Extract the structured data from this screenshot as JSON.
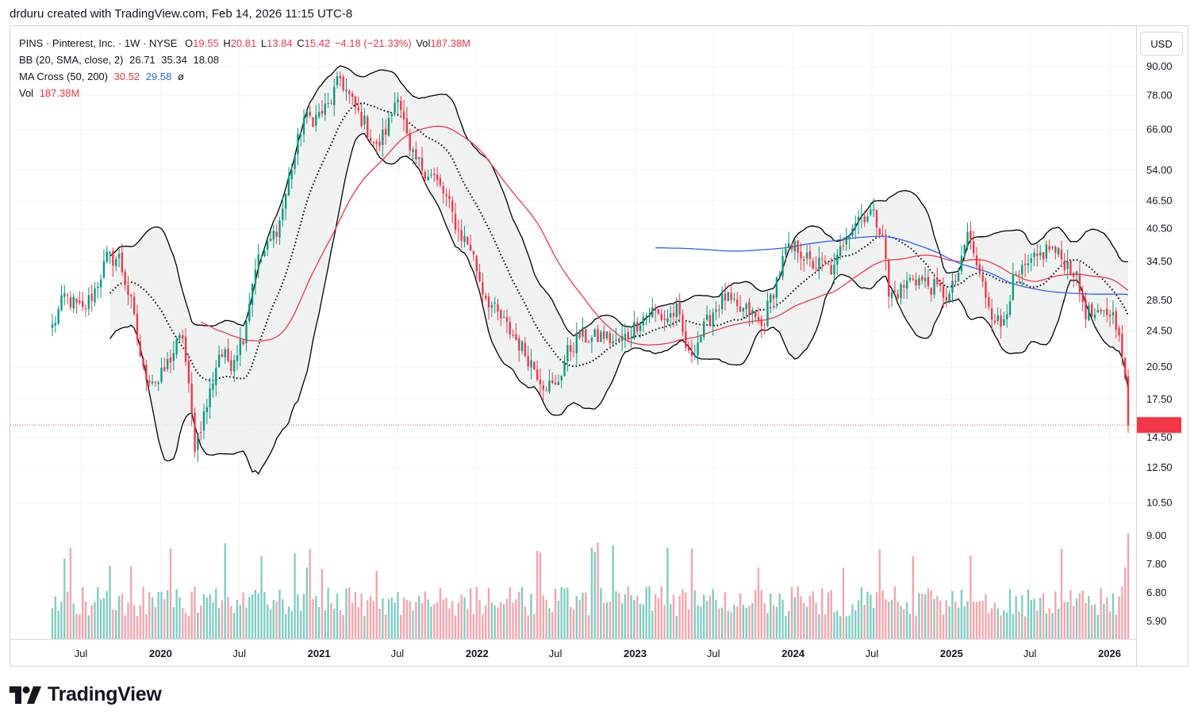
{
  "header": {
    "caption": "drduru created with TradingView.com, Feb 14, 2026 11:15 UTC-8"
  },
  "legend": {
    "symbol_line": "PINS · Pinterest, Inc. · 1W · NYSE",
    "o_label": "O",
    "o_value": "19.55",
    "h_label": "H",
    "h_value": "20.81",
    "l_label": "L",
    "l_value": "13.84",
    "c_label": "C",
    "c_value": "15.42",
    "change": "−4.18 (−21.33%)",
    "vol_label": "Vol",
    "vol_value": "187.38M",
    "bb_label": "BB (20, SMA, close, 2)",
    "bb_mid": "26.71",
    "bb_upper": "35.34",
    "bb_lower": "18.08",
    "ma_label": "MA Cross (50, 200)",
    "ma_fast": "30.52",
    "ma_slow": "29.58",
    "ma_icon": "ø",
    "vol2_label": "Vol",
    "vol2_value": "187.38M"
  },
  "currency": "USD",
  "brand": {
    "name": "TradingView",
    "icon": "tradingview-logo-icon"
  },
  "colors": {
    "up": "#089981",
    "down": "#f23645",
    "vol_up": "#7fccc2",
    "vol_down": "#f6a3aa",
    "ma50": "#f23645",
    "ma200": "#2962ff",
    "bb_fill": "#ebedee",
    "bb_line": "#000000"
  },
  "chart_data": {
    "type": "candlestick",
    "symbol": "PINS",
    "interval": "1W",
    "price_scale": "log",
    "price_ticks": [
      "90.00",
      "78.00",
      "66.00",
      "54.00",
      "46.50",
      "40.50",
      "34.50",
      "28.50",
      "24.50",
      "20.50",
      "17.50",
      "14.50",
      "12.50",
      "10.50"
    ],
    "volume_ticks": [
      "9.00",
      "7.80",
      "6.80",
      "5.90"
    ],
    "time_labels": [
      "Jul",
      "2020",
      "Jul",
      "2021",
      "Jul",
      "2022",
      "Jul",
      "2023",
      "Jul",
      "2024",
      "Jul",
      "2025",
      "Jul",
      "2026"
    ],
    "last_price": 15.42,
    "anchors": [
      [
        "2019-04-26",
        25
      ],
      [
        "2019-05-24",
        29
      ],
      [
        "2019-07-05",
        27
      ],
      [
        "2019-08-02",
        30
      ],
      [
        "2019-08-30",
        35
      ],
      [
        "2019-09-27",
        35
      ],
      [
        "2019-10-25",
        28
      ],
      [
        "2019-11-22",
        20
      ],
      [
        "2019-12-27",
        19
      ],
      [
        "2020-01-24",
        21.5
      ],
      [
        "2020-02-21",
        24
      ],
      [
        "2020-03-20",
        14
      ],
      [
        "2020-04-17",
        17
      ],
      [
        "2020-05-15",
        22
      ],
      [
        "2020-06-12",
        21
      ],
      [
        "2020-07-10",
        24
      ],
      [
        "2020-08-07",
        34
      ],
      [
        "2020-09-04",
        37
      ],
      [
        "2020-10-02",
        42
      ],
      [
        "2020-10-30",
        55
      ],
      [
        "2020-11-27",
        70
      ],
      [
        "2020-12-25",
        70
      ],
      [
        "2021-01-22",
        74
      ],
      [
        "2021-02-19",
        85
      ],
      [
        "2021-03-19",
        75
      ],
      [
        "2021-04-16",
        68
      ],
      [
        "2021-05-14",
        60
      ],
      [
        "2021-06-11",
        68
      ],
      [
        "2021-07-02",
        80
      ],
      [
        "2021-07-30",
        58
      ],
      [
        "2021-08-27",
        55
      ],
      [
        "2021-09-24",
        52
      ],
      [
        "2021-10-22",
        47
      ],
      [
        "2021-11-19",
        40
      ],
      [
        "2021-12-17",
        37
      ],
      [
        "2022-01-14",
        30
      ],
      [
        "2022-02-11",
        27
      ],
      [
        "2022-03-11",
        25
      ],
      [
        "2022-04-08",
        23
      ],
      [
        "2022-05-06",
        21
      ],
      [
        "2022-06-03",
        19
      ],
      [
        "2022-07-01",
        18.5
      ],
      [
        "2022-07-29",
        22
      ],
      [
        "2022-08-26",
        24
      ],
      [
        "2022-09-23",
        23.5
      ],
      [
        "2022-10-21",
        24
      ],
      [
        "2022-11-18",
        23
      ],
      [
        "2022-12-16",
        24
      ],
      [
        "2023-01-13",
        26
      ],
      [
        "2023-02-10",
        27
      ],
      [
        "2023-03-10",
        26
      ],
      [
        "2023-04-07",
        27
      ],
      [
        "2023-05-05",
        21.5
      ],
      [
        "2023-06-02",
        24
      ],
      [
        "2023-06-30",
        27
      ],
      [
        "2023-07-28",
        29
      ],
      [
        "2023-08-25",
        27
      ],
      [
        "2023-09-22",
        27
      ],
      [
        "2023-10-20",
        25
      ],
      [
        "2023-11-17",
        30
      ],
      [
        "2023-12-15",
        36
      ],
      [
        "2024-01-12",
        37
      ],
      [
        "2024-02-09",
        34
      ],
      [
        "2024-03-08",
        34
      ],
      [
        "2024-04-05",
        33
      ],
      [
        "2024-05-03",
        40
      ],
      [
        "2024-05-31",
        43
      ],
      [
        "2024-06-28",
        44
      ],
      [
        "2024-07-26",
        40
      ],
      [
        "2024-08-09",
        29
      ],
      [
        "2024-09-06",
        30
      ],
      [
        "2024-10-04",
        32
      ],
      [
        "2024-11-01",
        31
      ],
      [
        "2024-11-29",
        30
      ],
      [
        "2024-12-27",
        29
      ],
      [
        "2025-01-24",
        34
      ],
      [
        "2025-02-07",
        40
      ],
      [
        "2025-03-07",
        32
      ],
      [
        "2025-04-04",
        27
      ],
      [
        "2025-04-25",
        25
      ],
      [
        "2025-05-23",
        31
      ],
      [
        "2025-06-20",
        33
      ],
      [
        "2025-07-18",
        35
      ],
      [
        "2025-08-15",
        37
      ],
      [
        "2025-09-12",
        35
      ],
      [
        "2025-10-10",
        33
      ],
      [
        "2025-11-07",
        27
      ],
      [
        "2025-12-05",
        26
      ],
      [
        "2026-01-02",
        27
      ],
      [
        "2026-01-23",
        25
      ],
      [
        "2026-01-30",
        21
      ],
      [
        "2026-02-06",
        19.55
      ],
      [
        "2026-02-13",
        15.42
      ]
    ]
  }
}
